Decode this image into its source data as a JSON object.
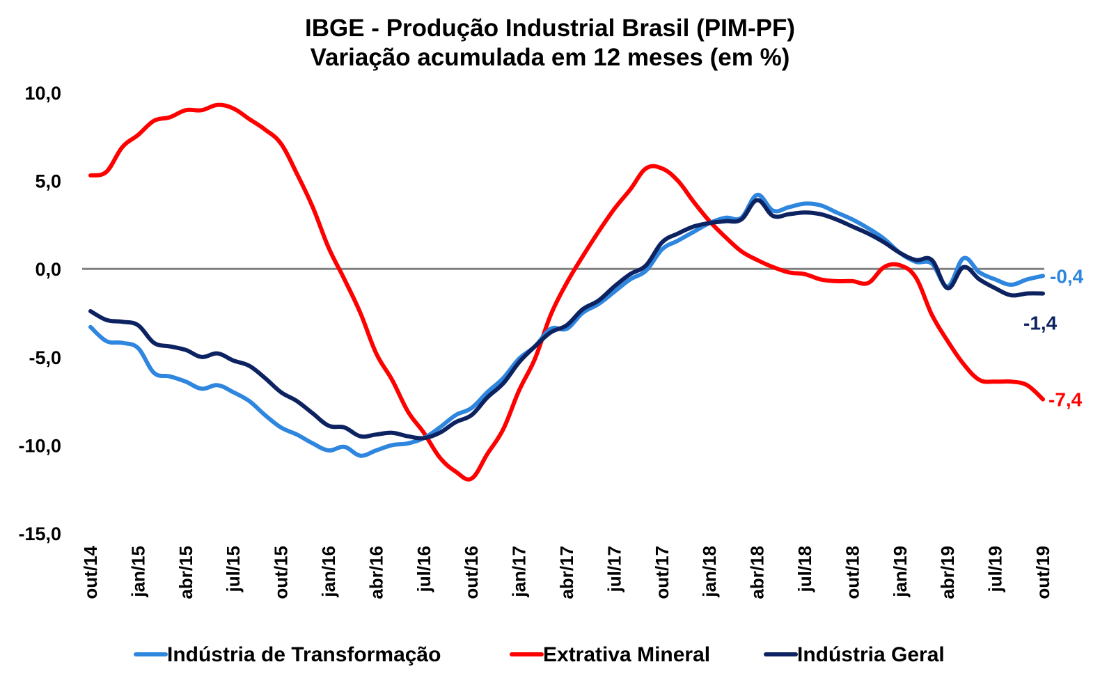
{
  "chart_data": {
    "type": "line",
    "title": "IBGE - Produção Industrial Brasil (PIM-PF)",
    "subtitle": "Variação acumulada em 12 meses (em %)",
    "xlabel": "",
    "ylabel": "",
    "ylim": [
      -15,
      10
    ],
    "ytick_values": [
      10,
      5,
      0,
      -5,
      -10,
      -15
    ],
    "ytick_labels": [
      "10,0",
      "5,0",
      "0,0",
      "-5,0",
      "-10,0",
      "-15,0"
    ],
    "grid": false,
    "zero_line": true,
    "legend_position": "bottom",
    "x_tick_labels": [
      "out/14",
      "jan/15",
      "abr/15",
      "jul/15",
      "out/15",
      "jan/16",
      "abr/16",
      "jul/16",
      "out/16",
      "jan/17",
      "abr/17",
      "jul/17",
      "out/17",
      "jan/18",
      "abr/18",
      "jul/18",
      "out/18",
      "jan/19",
      "abr/19",
      "jul/19",
      "out/19"
    ],
    "x": [
      "out/14",
      "nov/14",
      "dez/14",
      "jan/15",
      "fev/15",
      "mar/15",
      "abr/15",
      "mai/15",
      "jun/15",
      "jul/15",
      "ago/15",
      "set/15",
      "out/15",
      "nov/15",
      "dez/15",
      "jan/16",
      "fev/16",
      "mar/16",
      "abr/16",
      "mai/16",
      "jun/16",
      "jul/16",
      "ago/16",
      "set/16",
      "out/16",
      "nov/16",
      "dez/16",
      "jan/17",
      "fev/17",
      "mar/17",
      "abr/17",
      "mai/17",
      "jun/17",
      "jul/17",
      "ago/17",
      "set/17",
      "out/17",
      "nov/17",
      "dez/17",
      "jan/18",
      "fev/18",
      "mar/18",
      "abr/18",
      "mai/18",
      "jun/18",
      "jul/18",
      "ago/18",
      "set/18",
      "out/18",
      "nov/18",
      "dez/18",
      "jan/19",
      "fev/19",
      "mar/19",
      "abr/19",
      "mai/19",
      "jun/19",
      "jul/19",
      "ago/19",
      "set/19",
      "out/19"
    ],
    "series": [
      {
        "name": "Indústria de Transformação",
        "color": "#2E86DE",
        "values": [
          -3.3,
          -4.1,
          -4.2,
          -4.5,
          -5.9,
          -6.1,
          -6.4,
          -6.8,
          -6.6,
          -7.0,
          -7.5,
          -8.3,
          -9.0,
          -9.4,
          -9.9,
          -10.3,
          -10.1,
          -10.6,
          -10.3,
          -10.0,
          -9.9,
          -9.6,
          -9.0,
          -8.3,
          -7.9,
          -7.0,
          -6.2,
          -5.1,
          -4.4,
          -3.4,
          -3.4,
          -2.5,
          -2.0,
          -1.3,
          -0.6,
          -0.1,
          1.1,
          1.6,
          2.1,
          2.6,
          2.9,
          2.9,
          4.2,
          3.3,
          3.5,
          3.7,
          3.6,
          3.2,
          2.8,
          2.3,
          1.7,
          0.9,
          0.4,
          0.3,
          -1.0,
          0.6,
          -0.2,
          -0.6,
          -0.9,
          -0.6,
          -0.4
        ],
        "end_label": "-0,4"
      },
      {
        "name": "Extrativa Mineral",
        "color": "#FF0000",
        "values": [
          5.3,
          5.5,
          6.9,
          7.6,
          8.4,
          8.6,
          9.0,
          9.0,
          9.3,
          9.1,
          8.5,
          7.9,
          7.1,
          5.4,
          3.5,
          1.2,
          -0.6,
          -2.5,
          -4.8,
          -6.3,
          -8.1,
          -9.3,
          -10.7,
          -11.5,
          -11.9,
          -10.5,
          -9.1,
          -6.9,
          -5.1,
          -2.6,
          -0.8,
          0.7,
          2.1,
          3.4,
          4.5,
          5.7,
          5.7,
          5.0,
          3.8,
          2.7,
          1.8,
          1.0,
          0.5,
          0.1,
          -0.2,
          -0.3,
          -0.6,
          -0.7,
          -0.7,
          -0.8,
          0.1,
          0.2,
          -0.5,
          -2.6,
          -4.1,
          -5.4,
          -6.3,
          -6.4,
          -6.4,
          -6.6,
          -7.4
        ],
        "end_label": "-7,4"
      },
      {
        "name": "Indústria Geral",
        "color": "#0D2260",
        "values": [
          -2.4,
          -2.9,
          -3.0,
          -3.2,
          -4.2,
          -4.4,
          -4.6,
          -5.0,
          -4.8,
          -5.2,
          -5.5,
          -6.2,
          -7.0,
          -7.5,
          -8.2,
          -8.9,
          -9.0,
          -9.5,
          -9.4,
          -9.3,
          -9.5,
          -9.6,
          -9.3,
          -8.7,
          -8.3,
          -7.3,
          -6.5,
          -5.3,
          -4.4,
          -3.6,
          -3.2,
          -2.3,
          -1.8,
          -1.0,
          -0.3,
          0.2,
          1.5,
          2.0,
          2.4,
          2.6,
          2.7,
          2.8,
          3.9,
          3.0,
          3.1,
          3.2,
          3.1,
          2.8,
          2.4,
          2.0,
          1.5,
          0.9,
          0.5,
          0.5,
          -1.1,
          0.1,
          -0.6,
          -1.1,
          -1.5,
          -1.4,
          -1.4
        ],
        "end_label": "-1,4"
      }
    ]
  }
}
